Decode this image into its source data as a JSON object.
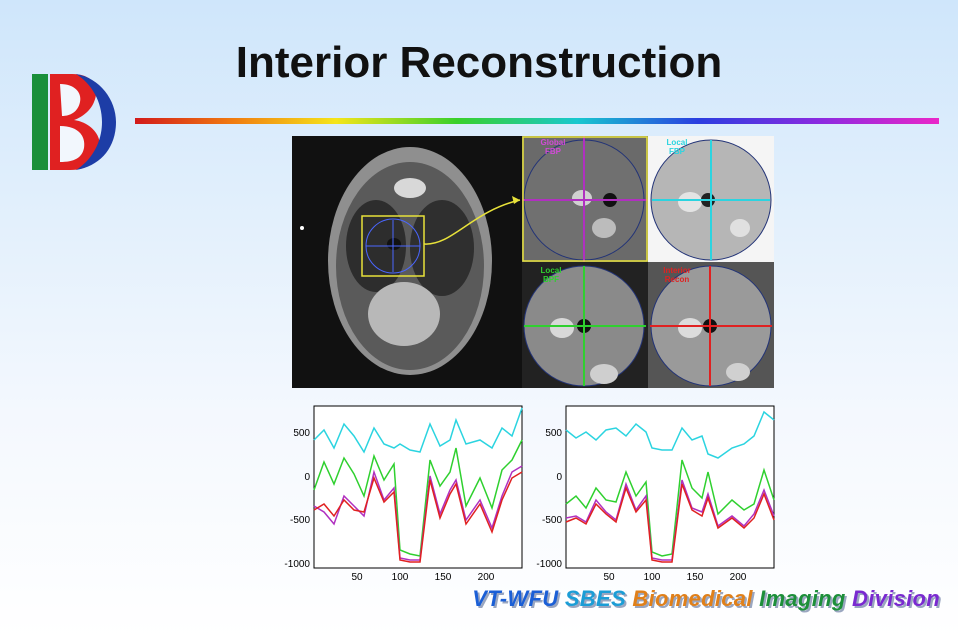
{
  "slide": {
    "title": "Interior Reconstruction"
  },
  "panels": {
    "global_fbp": "Global\nFBP",
    "local_fbp": "Local\nFBP",
    "local_bpf": "Local\nBPF",
    "interior_recon": "Interior\nRecon"
  },
  "plots": {
    "left": {
      "yticks": [
        "500",
        "0",
        "-500",
        "-1000"
      ],
      "xticks": [
        "50",
        "100",
        "150",
        "200"
      ]
    },
    "right": {
      "yticks": [
        "500",
        "0",
        "-500",
        "-1000"
      ],
      "xticks": [
        "50",
        "100",
        "150",
        "200"
      ]
    }
  },
  "footer": {
    "words": [
      {
        "text": "VT-WFU",
        "color": "#1b5fd6"
      },
      {
        "text": "SBES",
        "color": "#1b9dd6"
      },
      {
        "text": "Biomedical",
        "color": "#e0801a"
      },
      {
        "text": "Imaging",
        "color": "#1d8f3a"
      },
      {
        "text": "Division",
        "color": "#7a2ad0"
      }
    ]
  }
}
